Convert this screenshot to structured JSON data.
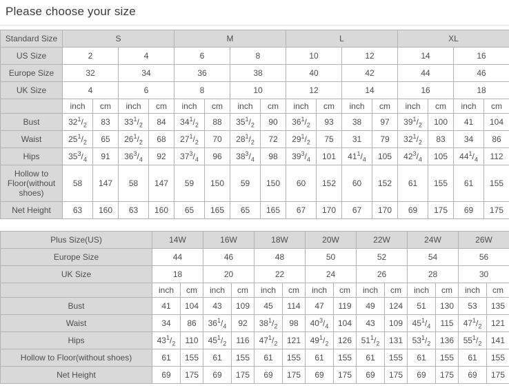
{
  "page": {
    "title": "Please choose your size"
  },
  "colors": {
    "header_bg": "#d9d9d9",
    "cell_bg": "#ffffff",
    "border": "#b2b2b2",
    "text": "#4d4d4d",
    "title_text": "#3a3a3a",
    "divider": "#dcdcdc"
  },
  "tables": [
    {
      "name": "standard-size-table",
      "rows": [
        {
          "type": "header",
          "span": 4,
          "label": "Standard Size",
          "cells": [
            "S",
            "M",
            "L",
            "XL"
          ]
        },
        {
          "type": "size",
          "span": 2,
          "label": "US Size",
          "cells": [
            "2",
            "4",
            "6",
            "8",
            "10",
            "12",
            "14",
            "16"
          ]
        },
        {
          "type": "size",
          "span": 2,
          "label": "Europe Size",
          "cells": [
            "32",
            "34",
            "36",
            "38",
            "40",
            "42",
            "44",
            "46"
          ]
        },
        {
          "type": "size",
          "span": 2,
          "label": "UK Size",
          "cells": [
            "4",
            "6",
            "8",
            "10",
            "12",
            "14",
            "16",
            "18"
          ]
        },
        {
          "type": "units",
          "span": 1,
          "label": "",
          "cells": [
            "inch",
            "cm",
            "inch",
            "cm",
            "inch",
            "cm",
            "inch",
            "cm",
            "inch",
            "cm",
            "inch",
            "cm",
            "inch",
            "cm",
            "inch",
            "cm"
          ]
        },
        {
          "type": "measure",
          "span": 1,
          "label": "Bust",
          "cells": [
            "32 1/2",
            "83",
            "33 1/2",
            "84",
            "34 1/2",
            "88",
            "35 1/2",
            "90",
            "36 1/2",
            "93",
            "38",
            "97",
            "39 1/2",
            "100",
            "41",
            "104"
          ]
        },
        {
          "type": "measure",
          "span": 1,
          "label": "Waist",
          "cells": [
            "25 1/2",
            "65",
            "26 1/2",
            "68",
            "27 1/2",
            "70",
            "28 1/2",
            "72",
            "29 1/2",
            "75",
            "31",
            "79",
            "32 1/2",
            "83",
            "34",
            "86"
          ]
        },
        {
          "type": "measure",
          "span": 1,
          "label": "Hips",
          "cells": [
            "35 3/4",
            "91",
            "36 3/4",
            "92",
            "37 3/4",
            "96",
            "38 3/4",
            "98",
            "39 3/4",
            "101",
            "41 1/4",
            "105",
            "42 3/4",
            "105",
            "44 1/4",
            "112"
          ]
        },
        {
          "type": "measure",
          "span": 1,
          "label": "Hollow to Floor(without shoes)",
          "cells": [
            "58",
            "147",
            "58",
            "147",
            "59",
            "150",
            "59",
            "150",
            "60",
            "152",
            "60",
            "152",
            "61",
            "155",
            "61",
            "155"
          ]
        },
        {
          "type": "measure",
          "span": 1,
          "label": "Net Height",
          "cells": [
            "63",
            "160",
            "63",
            "160",
            "65",
            "165",
            "65",
            "165",
            "67",
            "170",
            "67",
            "170",
            "69",
            "175",
            "69",
            "175"
          ]
        }
      ]
    },
    {
      "name": "plus-size-table",
      "rows": [
        {
          "type": "header",
          "span": 2,
          "label": "Plus Size(US)",
          "cells": [
            "14W",
            "16W",
            "18W",
            "20W",
            "22W",
            "24W",
            "26W"
          ]
        },
        {
          "type": "size",
          "span": 2,
          "label": "Europe Size",
          "cells": [
            "44",
            "46",
            "48",
            "50",
            "52",
            "54",
            "56"
          ]
        },
        {
          "type": "size",
          "span": 2,
          "label": "UK Size",
          "cells": [
            "18",
            "20",
            "22",
            "24",
            "26",
            "28",
            "30"
          ]
        },
        {
          "type": "units",
          "span": 1,
          "label": "",
          "cells": [
            "inch",
            "cm",
            "inch",
            "cm",
            "inch",
            "cm",
            "inch",
            "cm",
            "inch",
            "cm",
            "inch",
            "cm",
            "inch",
            "cm"
          ]
        },
        {
          "type": "measure",
          "span": 1,
          "label": "Bust",
          "cells": [
            "41",
            "104",
            "43",
            "109",
            "45",
            "114",
            "47",
            "119",
            "49",
            "124",
            "51",
            "130",
            "53",
            "135"
          ]
        },
        {
          "type": "measure",
          "span": 1,
          "label": "Waist",
          "cells": [
            "34",
            "86",
            "36 1/4",
            "92",
            "38 1/2",
            "98",
            "40 3/4",
            "104",
            "43",
            "109",
            "45 1/4",
            "115",
            "47 1/2",
            "121"
          ]
        },
        {
          "type": "measure",
          "span": 1,
          "label": "Hips",
          "cells": [
            "43 1/2",
            "110",
            "45 1/2",
            "116",
            "47 1/2",
            "121",
            "49 1/2",
            "126",
            "51 1/2",
            "131",
            "53 1/2",
            "136",
            "55 1/2",
            "141"
          ]
        },
        {
          "type": "measure",
          "span": 1,
          "label": "Hollow to Floor(without shoes)",
          "cells": [
            "61",
            "155",
            "61",
            "155",
            "61",
            "155",
            "61",
            "155",
            "61",
            "155",
            "61",
            "155",
            "61",
            "155"
          ]
        },
        {
          "type": "measure",
          "span": 1,
          "label": "Net Height",
          "cells": [
            "69",
            "175",
            "69",
            "175",
            "69",
            "175",
            "69",
            "175",
            "69",
            "175",
            "69",
            "175",
            "69",
            "175"
          ]
        }
      ]
    }
  ]
}
